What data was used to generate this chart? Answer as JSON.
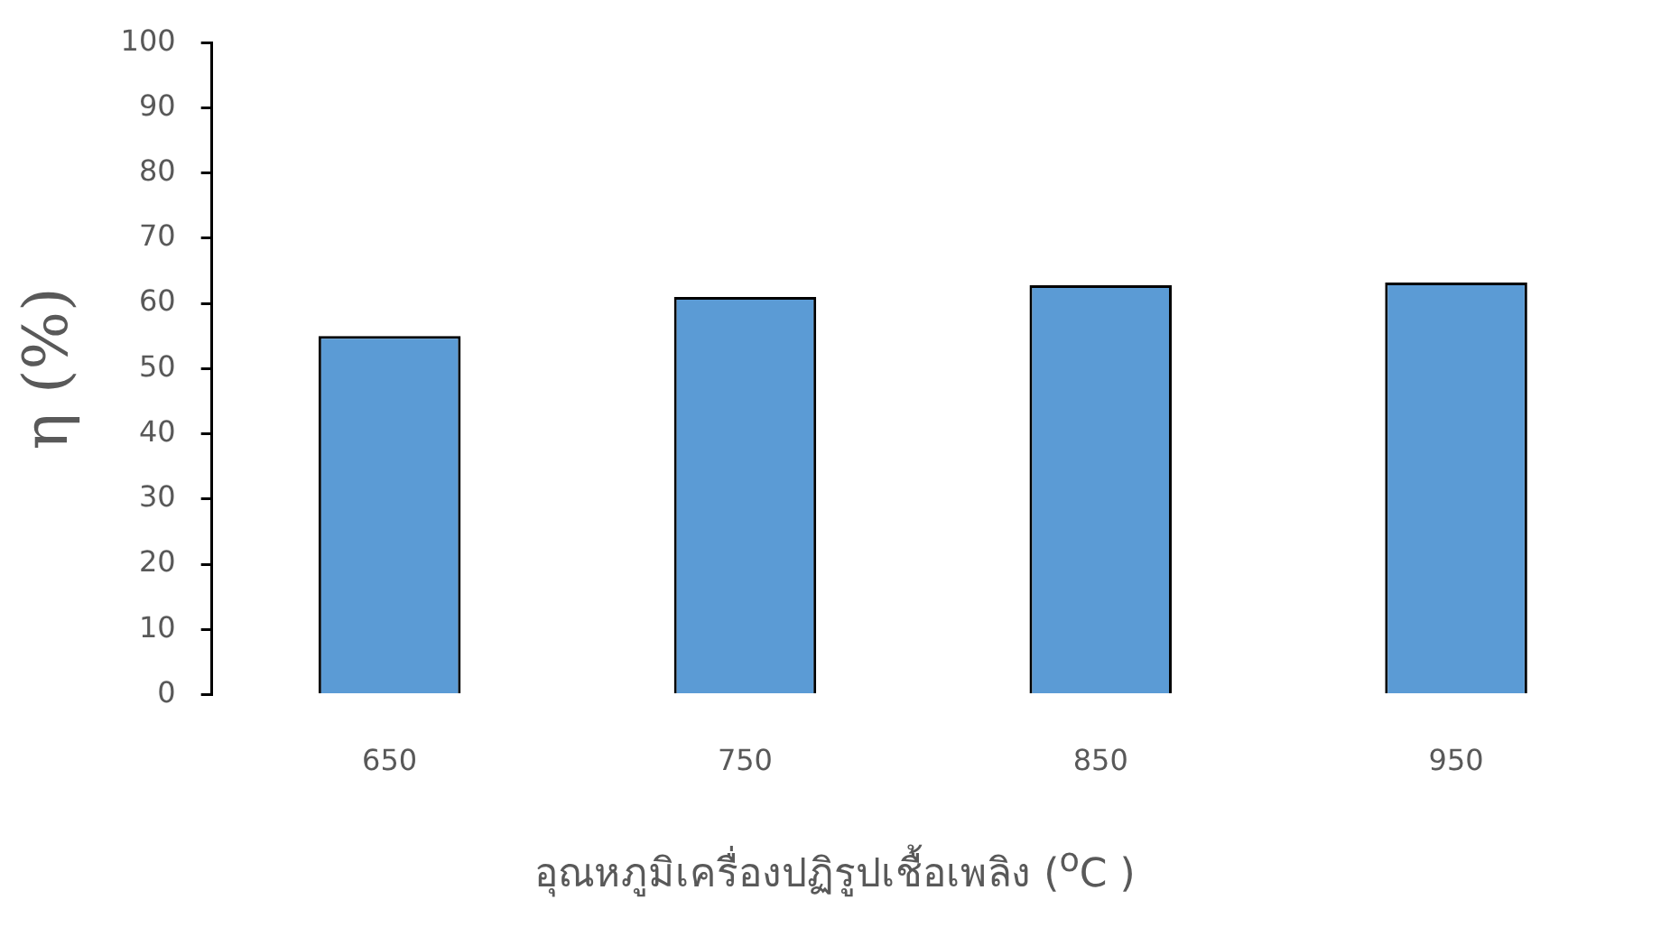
{
  "chart_data": {
    "type": "bar",
    "xlabel": "อุณหภูมิเครื่องปฏิรูปเชื้อเพลิง ($^{o}$C )",
    "ylabel": "η (%)",
    "categories": [
      "650",
      "750",
      "850",
      "950"
    ],
    "values": [
      55,
      61,
      62.8,
      63.2
    ],
    "color": "#5b9bd5",
    "ylim": [
      0,
      100
    ],
    "yticks": [
      0,
      10,
      20,
      30,
      40,
      50,
      60,
      70,
      80,
      90,
      100
    ],
    "grid": false,
    "legend": false
  }
}
